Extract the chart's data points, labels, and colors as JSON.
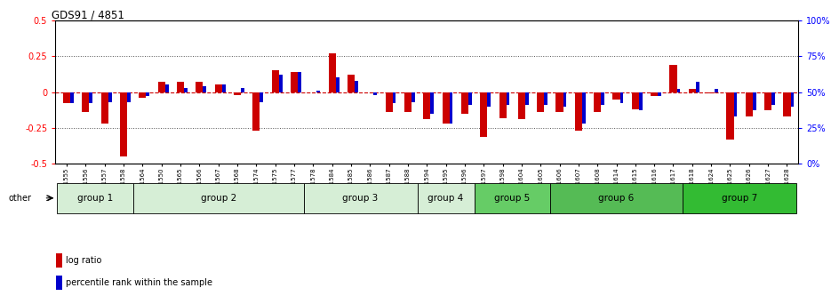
{
  "title": "GDS91 / 4851",
  "samples": [
    "GSM1555",
    "GSM1556",
    "GSM1557",
    "GSM1558",
    "GSM1564",
    "GSM1550",
    "GSM1565",
    "GSM1566",
    "GSM1567",
    "GSM1568",
    "GSM1574",
    "GSM1575",
    "GSM1577",
    "GSM1578",
    "GSM1584",
    "GSM1585",
    "GSM1586",
    "GSM1587",
    "GSM1588",
    "GSM1594",
    "GSM1595",
    "GSM1596",
    "GSM1597",
    "GSM1598",
    "GSM1604",
    "GSM1605",
    "GSM1606",
    "GSM1607",
    "GSM1608",
    "GSM1614",
    "GSM1615",
    "GSM1616",
    "GSM1617",
    "GSM1618",
    "GSM1624",
    "GSM1625",
    "GSM1626",
    "GSM1627",
    "GSM1628"
  ],
  "log_ratio": [
    -0.08,
    -0.14,
    -0.22,
    -0.45,
    -0.04,
    0.07,
    0.07,
    0.07,
    0.05,
    -0.02,
    -0.27,
    0.15,
    0.14,
    -0.005,
    0.27,
    0.12,
    -0.005,
    -0.14,
    -0.14,
    -0.19,
    -0.22,
    -0.15,
    -0.31,
    -0.18,
    -0.19,
    -0.14,
    -0.14,
    -0.27,
    -0.14,
    -0.05,
    -0.12,
    -0.03,
    0.19,
    0.02,
    -0.01,
    -0.33,
    -0.17,
    -0.13,
    -0.17
  ],
  "pct_rank": [
    -0.08,
    -0.08,
    -0.07,
    -0.07,
    -0.03,
    0.05,
    0.03,
    0.04,
    0.05,
    0.03,
    -0.07,
    0.12,
    0.14,
    0.01,
    0.1,
    0.08,
    -0.02,
    -0.08,
    -0.07,
    -0.15,
    -0.22,
    -0.09,
    -0.1,
    -0.09,
    -0.09,
    -0.09,
    -0.1,
    -0.22,
    -0.09,
    -0.08,
    -0.13,
    -0.03,
    0.02,
    0.07,
    0.02,
    -0.17,
    -0.13,
    -0.09,
    -0.1
  ],
  "groups": [
    {
      "name": "group 1",
      "start": 0,
      "end": 4
    },
    {
      "name": "group 2",
      "start": 4,
      "end": 13
    },
    {
      "name": "group 3",
      "start": 13,
      "end": 19
    },
    {
      "name": "group 4",
      "start": 19,
      "end": 22
    },
    {
      "name": "group 5",
      "start": 22,
      "end": 26
    },
    {
      "name": "group 6",
      "start": 26,
      "end": 33
    },
    {
      "name": "group 7",
      "start": 33,
      "end": 39
    }
  ],
  "group_colors": [
    "#d6eed6",
    "#d6eed6",
    "#d6eed6",
    "#d6eed6",
    "#66cc66",
    "#55bb55",
    "#33bb33"
  ],
  "ylim": [
    -0.5,
    0.5
  ],
  "yticks_left": [
    -0.5,
    -0.25,
    0,
    0.25,
    0.5
  ],
  "bar_color_red": "#cc0000",
  "bar_color_blue": "#0000cc",
  "zero_line_color": "#cc0000",
  "bg_color": "#ffffff"
}
